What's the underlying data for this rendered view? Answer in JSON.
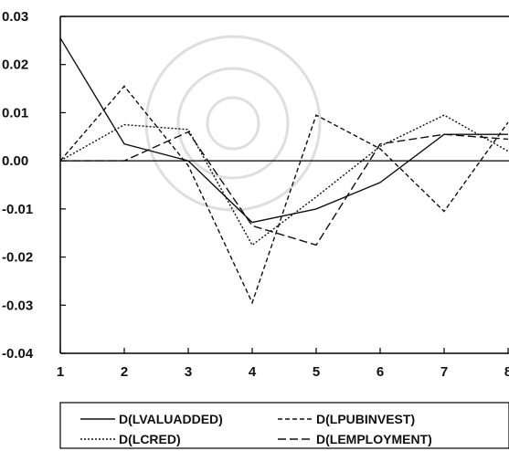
{
  "chart_data": {
    "type": "line",
    "title": "",
    "xlabel": "",
    "ylabel": "",
    "x": [
      1,
      2,
      3,
      4,
      5,
      6,
      7,
      8
    ],
    "xlim": [
      1,
      8
    ],
    "ylim": [
      -0.04,
      0.03
    ],
    "x_tick_labels": [
      "1",
      "2",
      "3",
      "4",
      "5",
      "6",
      "7",
      "8"
    ],
    "y_tick_labels": [
      "0.03",
      "0.02",
      "0.01",
      "0.00",
      "-0.01",
      "-0.02",
      "-0.03",
      "-0.04"
    ],
    "y_tick_values": [
      0.03,
      0.02,
      0.01,
      0.0,
      -0.01,
      -0.02,
      -0.03,
      -0.04
    ],
    "grid": false,
    "zero_line": true,
    "legend_position": "bottom",
    "series": [
      {
        "name": "D(LVALUADDED)",
        "style": "solid",
        "values": [
          0.0255,
          0.0035,
          0.0,
          -0.0128,
          -0.01,
          -0.0045,
          0.0055,
          0.0055
        ]
      },
      {
        "name": "D(LPUBINVEST)",
        "style": "dashed",
        "values": [
          0.0,
          0.0155,
          -0.001,
          -0.0295,
          0.0095,
          0.0025,
          -0.0105,
          0.008
        ]
      },
      {
        "name": "D(LCRED)",
        "style": "dotted",
        "values": [
          0.0,
          0.0075,
          0.0065,
          -0.0175,
          -0.0075,
          0.003,
          0.0095,
          0.002
        ]
      },
      {
        "name": "D(LEMPLOYMENT)",
        "style": "longdash",
        "values": [
          0.0,
          0.0,
          0.006,
          -0.0135,
          -0.0175,
          0.0035,
          0.0055,
          0.0045
        ]
      }
    ]
  }
}
